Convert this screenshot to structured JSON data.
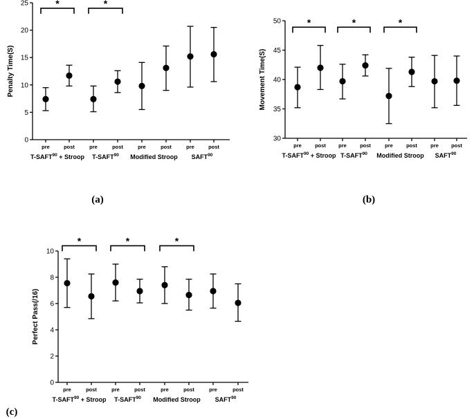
{
  "chart_data": [
    {
      "type": "scatter",
      "panel_label": "(a)",
      "ylabel": "Penalty Time(S)",
      "ylim": [
        0,
        25
      ],
      "yticks": [
        0,
        5,
        10,
        15,
        20,
        25
      ],
      "categories": [
        "pre",
        "post",
        "pre",
        "post",
        "pre",
        "post",
        "pre",
        "post"
      ],
      "groups": [
        {
          "label": "T-SAFT",
          "sup": "90",
          "suffix": " + Stroop"
        },
        {
          "label": "T-SAFT",
          "sup": "90",
          "suffix": ""
        },
        {
          "label": "Modified Stroop",
          "sup": "",
          "suffix": ""
        },
        {
          "label": "SAFT",
          "sup": "90",
          "suffix": ""
        }
      ],
      "means": [
        7.4,
        11.7,
        7.4,
        10.6,
        9.8,
        13.1,
        15.2,
        15.6
      ],
      "lower": [
        5.3,
        9.8,
        5.1,
        8.6,
        5.5,
        9.0,
        9.6,
        10.6
      ],
      "upper": [
        9.5,
        13.6,
        9.8,
        12.6,
        14.1,
        17.1,
        20.7,
        20.5
      ],
      "significance": [
        {
          "from": 0,
          "to": 1,
          "label": "*",
          "y": 24.0
        },
        {
          "from": 2,
          "to": 3,
          "label": "*",
          "y": 24.0
        }
      ]
    },
    {
      "type": "scatter",
      "panel_label": "(b)",
      "ylabel": "Movement Time(S)",
      "ylim": [
        30,
        50
      ],
      "yticks": [
        30,
        35,
        40,
        45,
        50
      ],
      "categories": [
        "pre",
        "post",
        "pre",
        "post",
        "pre",
        "post",
        "pre",
        "post"
      ],
      "groups": [
        {
          "label": "T-SAFT",
          "sup": "90",
          "suffix": " + Stroop"
        },
        {
          "label": "T-SAFT",
          "sup": "90",
          "suffix": ""
        },
        {
          "label": "Modified Stroop",
          "sup": "",
          "suffix": ""
        },
        {
          "label": "SAFT",
          "sup": "90",
          "suffix": ""
        }
      ],
      "means": [
        38.7,
        42.0,
        39.7,
        42.4,
        37.2,
        41.3,
        39.7,
        39.8
      ],
      "lower": [
        35.2,
        38.3,
        36.7,
        40.6,
        32.5,
        38.8,
        35.2,
        35.6
      ],
      "upper": [
        42.1,
        45.8,
        42.6,
        44.2,
        41.9,
        43.8,
        44.1,
        44.0
      ],
      "significance": [
        {
          "from": 0,
          "to": 1,
          "label": "*",
          "y": 48.9
        },
        {
          "from": 2,
          "to": 3,
          "label": "*",
          "y": 48.9
        },
        {
          "from": 4,
          "to": 5,
          "label": "*",
          "y": 48.9
        }
      ]
    },
    {
      "type": "scatter",
      "panel_label": "(c)",
      "ylabel": "Perfect Pass(/16)",
      "ylim": [
        0,
        10
      ],
      "yticks": [
        0,
        2,
        4,
        6,
        8,
        10
      ],
      "categories": [
        "pre",
        "post",
        "pre",
        "post",
        "pre",
        "post",
        "pre",
        "post"
      ],
      "groups": [
        {
          "label": "T-SAFT",
          "sup": "90",
          "suffix": " + Stroop"
        },
        {
          "label": "T-SAFT",
          "sup": "90",
          "suffix": ""
        },
        {
          "label": "Modified Stroop",
          "sup": "",
          "suffix": ""
        },
        {
          "label": "SAFT",
          "sup": "90",
          "suffix": ""
        }
      ],
      "means": [
        7.55,
        6.55,
        7.6,
        6.95,
        7.4,
        6.65,
        6.95,
        6.05
      ],
      "lower": [
        5.7,
        4.85,
        6.2,
        6.05,
        6.0,
        5.5,
        5.65,
        4.65
      ],
      "upper": [
        9.4,
        8.25,
        9.0,
        7.85,
        8.8,
        7.85,
        8.25,
        7.5
      ],
      "significance": [
        {
          "from": 0,
          "to": 1,
          "label": "*",
          "y": 10.4
        },
        {
          "from": 2,
          "to": 3,
          "label": "*",
          "y": 10.4
        },
        {
          "from": 4,
          "to": 5,
          "label": "*",
          "y": 10.4
        }
      ]
    }
  ]
}
